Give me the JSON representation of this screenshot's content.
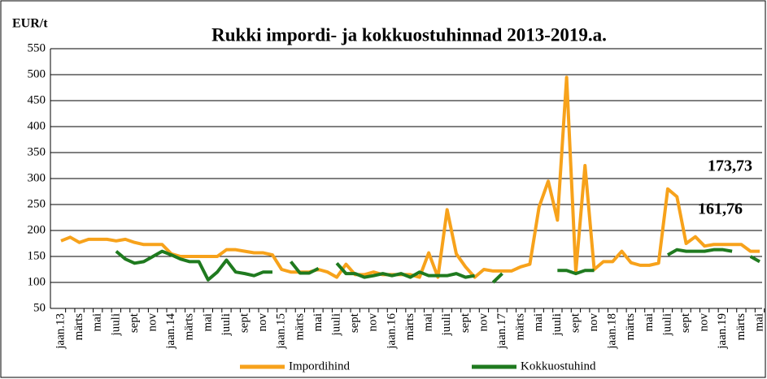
{
  "chart_data": {
    "type": "line",
    "title": "Rukki impordi- ja kokkuostuhinnad 2013-2019.a.",
    "y_label": "EUR/t",
    "categories": [
      "jaan.13",
      null,
      "märts",
      null,
      "mai",
      null,
      "juuli",
      null,
      "sept",
      null,
      "nov",
      null,
      "jaan.14",
      null,
      "märts",
      null,
      "mai",
      null,
      "juuli",
      null,
      "sept",
      null,
      "nov",
      null,
      "jaan.15",
      null,
      "märts",
      null,
      "mai",
      null,
      "juuli",
      null,
      "sept",
      null,
      "nov",
      null,
      "jaan.16",
      null,
      "märts",
      null,
      "mai",
      null,
      "juuli",
      null,
      "sept",
      null,
      "nov",
      null,
      "jaan.17",
      null,
      "märts",
      null,
      "mai",
      null,
      "juuli",
      null,
      "sept",
      null,
      "nov",
      null,
      "jaan.18",
      null,
      "märts",
      null,
      "mai",
      null,
      "juuli",
      null,
      "sept",
      null,
      "nov",
      null,
      "jaan.19",
      null,
      "märts",
      null,
      "mai"
    ],
    "series": [
      {
        "name": "Impordihind",
        "color": "#f7a21b",
        "values": [
          180,
          187,
          177,
          183,
          183,
          183,
          180,
          183,
          177,
          173,
          173,
          173,
          155,
          150,
          150,
          150,
          150,
          150,
          163,
          163,
          160,
          157,
          157,
          153,
          125,
          120,
          120,
          120,
          125,
          120,
          110,
          135,
          115,
          115,
          120,
          115,
          115,
          115,
          115,
          110,
          157,
          110,
          240,
          155,
          130,
          110,
          125,
          122,
          122,
          122,
          130,
          135,
          245,
          295,
          220,
          495,
          120,
          325,
          125,
          140,
          140,
          160,
          138,
          133,
          133,
          137,
          280,
          265,
          175,
          188,
          170,
          173,
          173,
          173,
          173,
          160,
          160
        ]
      },
      {
        "name": "Kokkuostuhind",
        "color": "#1f7a1f",
        "values": [
          null,
          null,
          null,
          null,
          null,
          null,
          160,
          145,
          137,
          140,
          150,
          160,
          153,
          145,
          140,
          140,
          105,
          120,
          143,
          120,
          117,
          113,
          120,
          120,
          null,
          140,
          118,
          118,
          127,
          null,
          137,
          117,
          117,
          110,
          113,
          117,
          113,
          117,
          110,
          120,
          113,
          113,
          113,
          117,
          110,
          113,
          null,
          100,
          117,
          null,
          null,
          null,
          null,
          null,
          123,
          123,
          117,
          123,
          123,
          null,
          null,
          null,
          null,
          null,
          null,
          null,
          153,
          163,
          160,
          160,
          160,
          163,
          163,
          160,
          null,
          150,
          140
        ]
      }
    ],
    "annotations": [
      "173,73",
      "161,76"
    ],
    "ylim": [
      50,
      550
    ],
    "yticks": [
      50,
      100,
      150,
      200,
      250,
      300,
      350,
      400,
      450,
      500,
      550
    ],
    "grid": true
  }
}
